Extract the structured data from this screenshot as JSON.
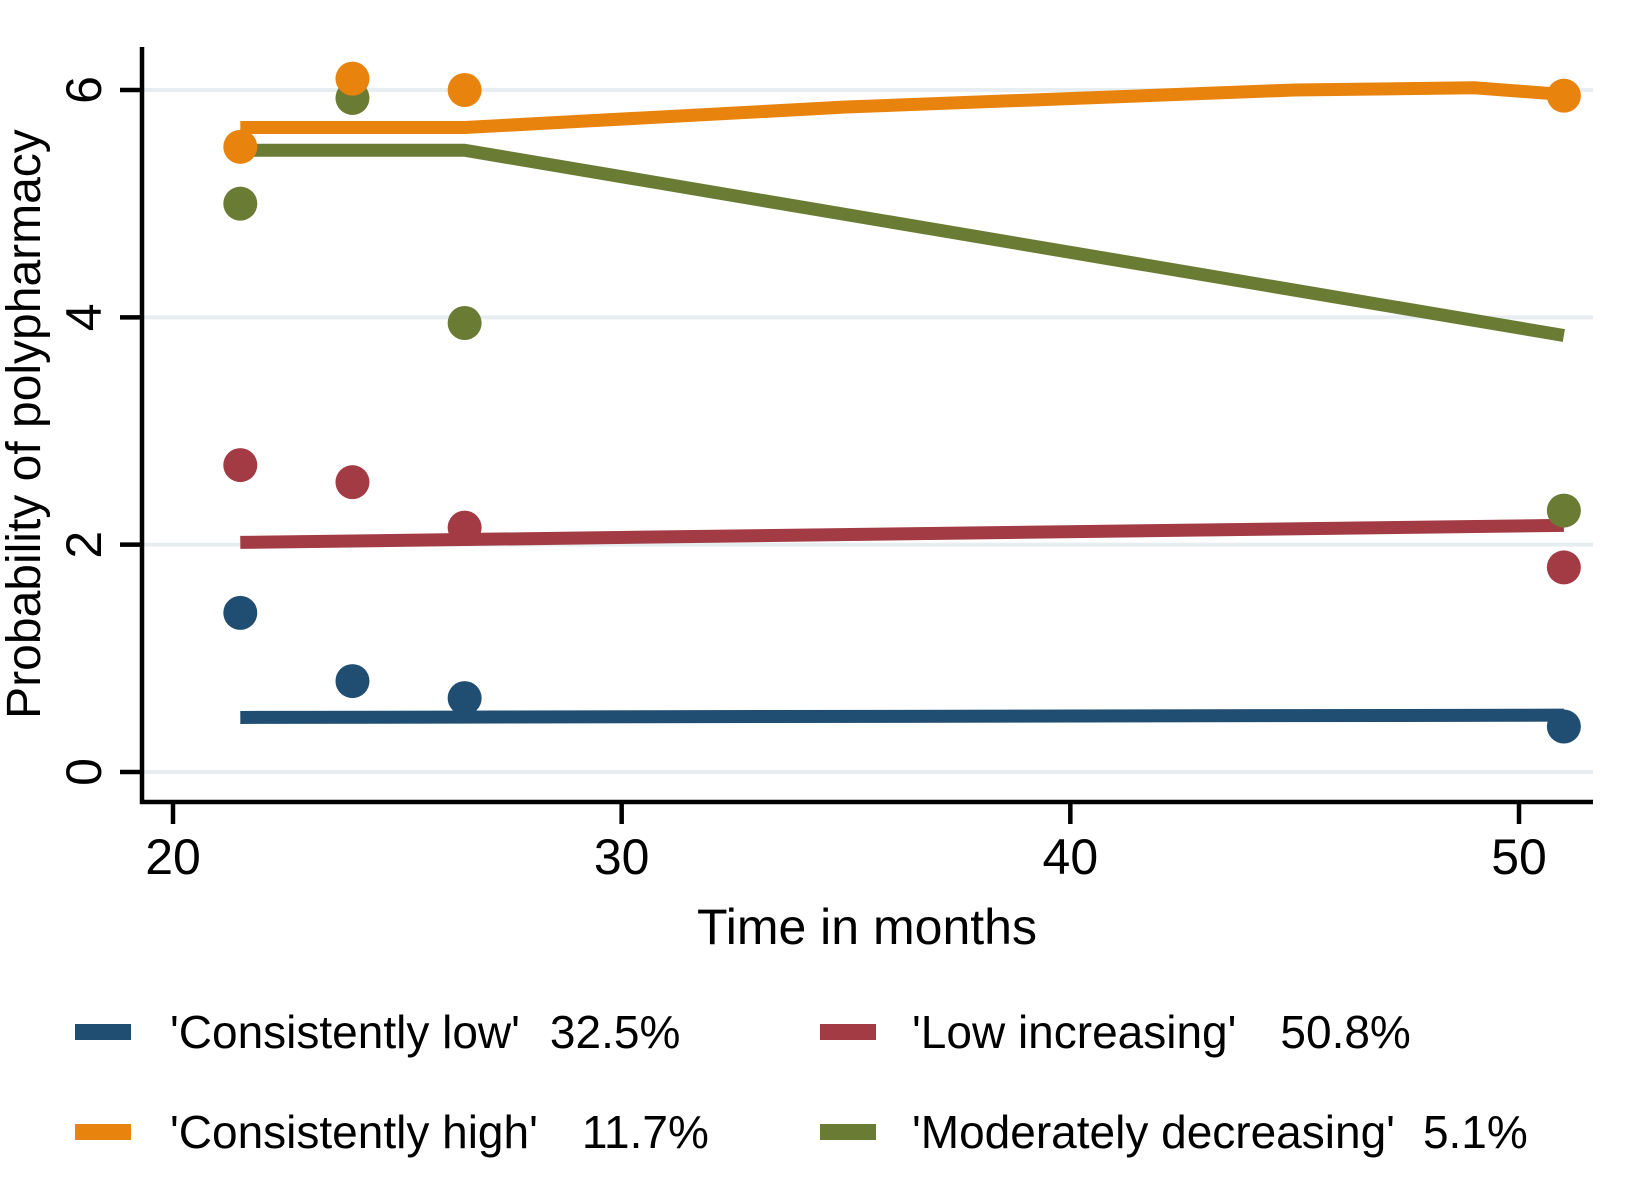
{
  "chart_data": {
    "type": "line",
    "title": "",
    "xlabel": "Time in months",
    "ylabel": "Probability of polypharmacy",
    "xlim": [
      19.3,
      51.7
    ],
    "ylim": [
      -0.27,
      6.4
    ],
    "xticks": [
      20,
      30,
      40,
      50
    ],
    "yticks": [
      0,
      2,
      4,
      6
    ],
    "grid": "horizontal-only",
    "legend_position": "below-two-columns",
    "colors": {
      "background": "#FFFFFF",
      "axis": "#000000",
      "gridline": "#E6EEF1",
      "navy": "#204E73",
      "maroon": "#A33B44",
      "orange": "#E8830D",
      "olive": "#6A7C34"
    },
    "series": [
      {
        "name": "Consistently low",
        "legend_label": "'Consistently low'",
        "legend_pct": "32.5%",
        "color": "#204E73",
        "line": {
          "x": [
            21.5,
            51
          ],
          "y": [
            0.48,
            0.5
          ]
        },
        "points": {
          "x": [
            21.5,
            24,
            26.5,
            51
          ],
          "y": [
            1.4,
            0.8,
            0.65,
            0.4
          ]
        }
      },
      {
        "name": "Low increasing",
        "legend_label": "'Low increasing'",
        "legend_pct": "50.8%",
        "color": "#A33B44",
        "line": {
          "x": [
            21.5,
            51
          ],
          "y": [
            2.02,
            2.17
          ]
        },
        "points": {
          "x": [
            21.5,
            24,
            26.5,
            51
          ],
          "y": [
            2.7,
            2.55,
            2.15,
            1.8
          ]
        }
      },
      {
        "name": "Consistently high",
        "legend_label": "'Consistently high'",
        "legend_pct": "11.7%",
        "color": "#E8830D",
        "line": {
          "x": [
            21.5,
            26.5,
            35,
            45,
            49,
            51
          ],
          "y": [
            5.67,
            5.67,
            5.85,
            6.0,
            6.02,
            5.96
          ]
        },
        "points": {
          "x": [
            21.5,
            24,
            26.5,
            51
          ],
          "y": [
            5.5,
            6.1,
            6.0,
            5.95
          ]
        }
      },
      {
        "name": "Moderately decreasing",
        "legend_label": "'Moderately decreasing'",
        "legend_pct": "5.1%",
        "color": "#6A7C34",
        "line": {
          "x": [
            21.5,
            26.5,
            51
          ],
          "y": [
            5.47,
            5.47,
            3.84
          ]
        },
        "points": {
          "x": [
            21.5,
            24,
            26.5,
            51
          ],
          "y": [
            5.0,
            5.93,
            3.95,
            2.3
          ]
        }
      }
    ]
  }
}
